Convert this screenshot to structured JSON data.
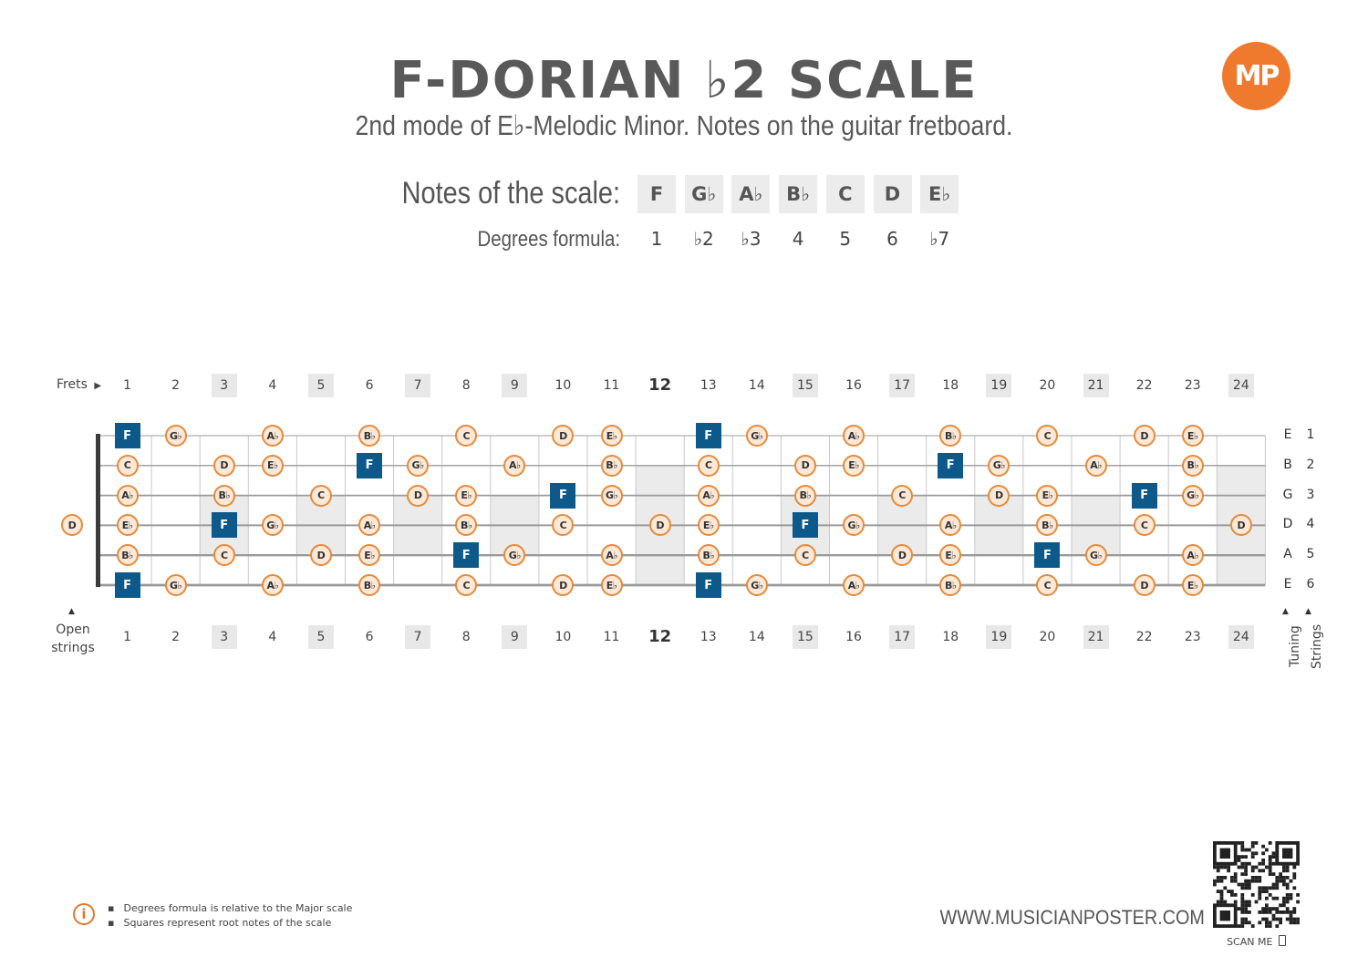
{
  "title": "F-DORIAN ♭2 SCALE",
  "subtitle": "2nd mode of E♭-Melodic Minor. Notes on the guitar fretboard.",
  "logo_text": "MP",
  "notes_label": "Notes of the scale:",
  "degrees_label": "Degrees formula:",
  "scale_notes": [
    "F",
    "G♭",
    "A♭",
    "B♭",
    "C",
    "D",
    "E♭"
  ],
  "degrees": [
    "1",
    "♭2",
    "♭3",
    "4",
    "5",
    "6",
    "♭7"
  ],
  "frets_label": "Frets",
  "open_strings_label": "Open strings",
  "tuning_label": "Tuning",
  "strings_label": "Strings",
  "fret_numbers": [
    "1",
    "2",
    "3",
    "4",
    "5",
    "6",
    "7",
    "8",
    "9",
    "10",
    "11",
    "12",
    "13",
    "14",
    "15",
    "16",
    "17",
    "18",
    "19",
    "20",
    "21",
    "22",
    "23",
    "24"
  ],
  "marked_frets": [
    3,
    5,
    7,
    9,
    12,
    15,
    17,
    19,
    21,
    24
  ],
  "tuning": [
    "E",
    "B",
    "G",
    "D",
    "A",
    "E"
  ],
  "string_numbers": [
    "1",
    "2",
    "3",
    "4",
    "5",
    "6"
  ],
  "open_string_notes": [
    {
      "string": 4,
      "note": "D"
    }
  ],
  "root_note": "F",
  "fretboard_notes": [
    {
      "string": 1,
      "notes": [
        [
          1,
          "F"
        ],
        [
          2,
          "G♭"
        ],
        [
          4,
          "A♭"
        ],
        [
          6,
          "B♭"
        ],
        [
          8,
          "C"
        ],
        [
          10,
          "D"
        ],
        [
          11,
          "E♭"
        ],
        [
          13,
          "F"
        ],
        [
          14,
          "G♭"
        ],
        [
          16,
          "A♭"
        ],
        [
          18,
          "B♭"
        ],
        [
          20,
          "C"
        ],
        [
          22,
          "D"
        ],
        [
          23,
          "E♭"
        ]
      ]
    },
    {
      "string": 2,
      "notes": [
        [
          1,
          "C"
        ],
        [
          3,
          "D"
        ],
        [
          4,
          "E♭"
        ],
        [
          6,
          "F"
        ],
        [
          7,
          "G♭"
        ],
        [
          9,
          "A♭"
        ],
        [
          11,
          "B♭"
        ],
        [
          13,
          "C"
        ],
        [
          15,
          "D"
        ],
        [
          16,
          "E♭"
        ],
        [
          18,
          "F"
        ],
        [
          19,
          "G♭"
        ],
        [
          21,
          "A♭"
        ],
        [
          23,
          "B♭"
        ]
      ]
    },
    {
      "string": 3,
      "notes": [
        [
          1,
          "A♭"
        ],
        [
          3,
          "B♭"
        ],
        [
          5,
          "C"
        ],
        [
          7,
          "D"
        ],
        [
          8,
          "E♭"
        ],
        [
          10,
          "F"
        ],
        [
          11,
          "G♭"
        ],
        [
          13,
          "A♭"
        ],
        [
          15,
          "B♭"
        ],
        [
          17,
          "C"
        ],
        [
          19,
          "D"
        ],
        [
          20,
          "E♭"
        ],
        [
          22,
          "F"
        ],
        [
          23,
          "G♭"
        ]
      ]
    },
    {
      "string": 4,
      "notes": [
        [
          1,
          "E♭"
        ],
        [
          3,
          "F"
        ],
        [
          4,
          "G♭"
        ],
        [
          6,
          "A♭"
        ],
        [
          8,
          "B♭"
        ],
        [
          10,
          "C"
        ],
        [
          12,
          "D"
        ],
        [
          13,
          "E♭"
        ],
        [
          15,
          "F"
        ],
        [
          16,
          "G♭"
        ],
        [
          18,
          "A♭"
        ],
        [
          20,
          "B♭"
        ],
        [
          22,
          "C"
        ],
        [
          24,
          "D"
        ]
      ]
    },
    {
      "string": 5,
      "notes": [
        [
          1,
          "B♭"
        ],
        [
          3,
          "C"
        ],
        [
          5,
          "D"
        ],
        [
          6,
          "E♭"
        ],
        [
          8,
          "F"
        ],
        [
          9,
          "G♭"
        ],
        [
          11,
          "A♭"
        ],
        [
          13,
          "B♭"
        ],
        [
          15,
          "C"
        ],
        [
          17,
          "D"
        ],
        [
          18,
          "E♭"
        ],
        [
          20,
          "F"
        ],
        [
          21,
          "G♭"
        ],
        [
          23,
          "A♭"
        ]
      ]
    },
    {
      "string": 6,
      "notes": [
        [
          1,
          "F"
        ],
        [
          2,
          "G♭"
        ],
        [
          4,
          "A♭"
        ],
        [
          6,
          "B♭"
        ],
        [
          8,
          "C"
        ],
        [
          10,
          "D"
        ],
        [
          11,
          "E♭"
        ],
        [
          13,
          "F"
        ],
        [
          14,
          "G♭"
        ],
        [
          16,
          "A♭"
        ],
        [
          18,
          "B♭"
        ],
        [
          20,
          "C"
        ],
        [
          22,
          "D"
        ],
        [
          23,
          "E♭"
        ]
      ]
    }
  ],
  "footnotes": [
    "Degrees formula is relative to the Major scale",
    "Squares represent root notes of the scale"
  ],
  "website": "WWW.MUSICIANPOSTER.COM",
  "scan_me": "SCAN ME",
  "colors": {
    "root": "#0d5a8a",
    "note_border": "#e58a3c",
    "note_fill": "#fbe8d7",
    "accent": "#ef7a2e"
  }
}
